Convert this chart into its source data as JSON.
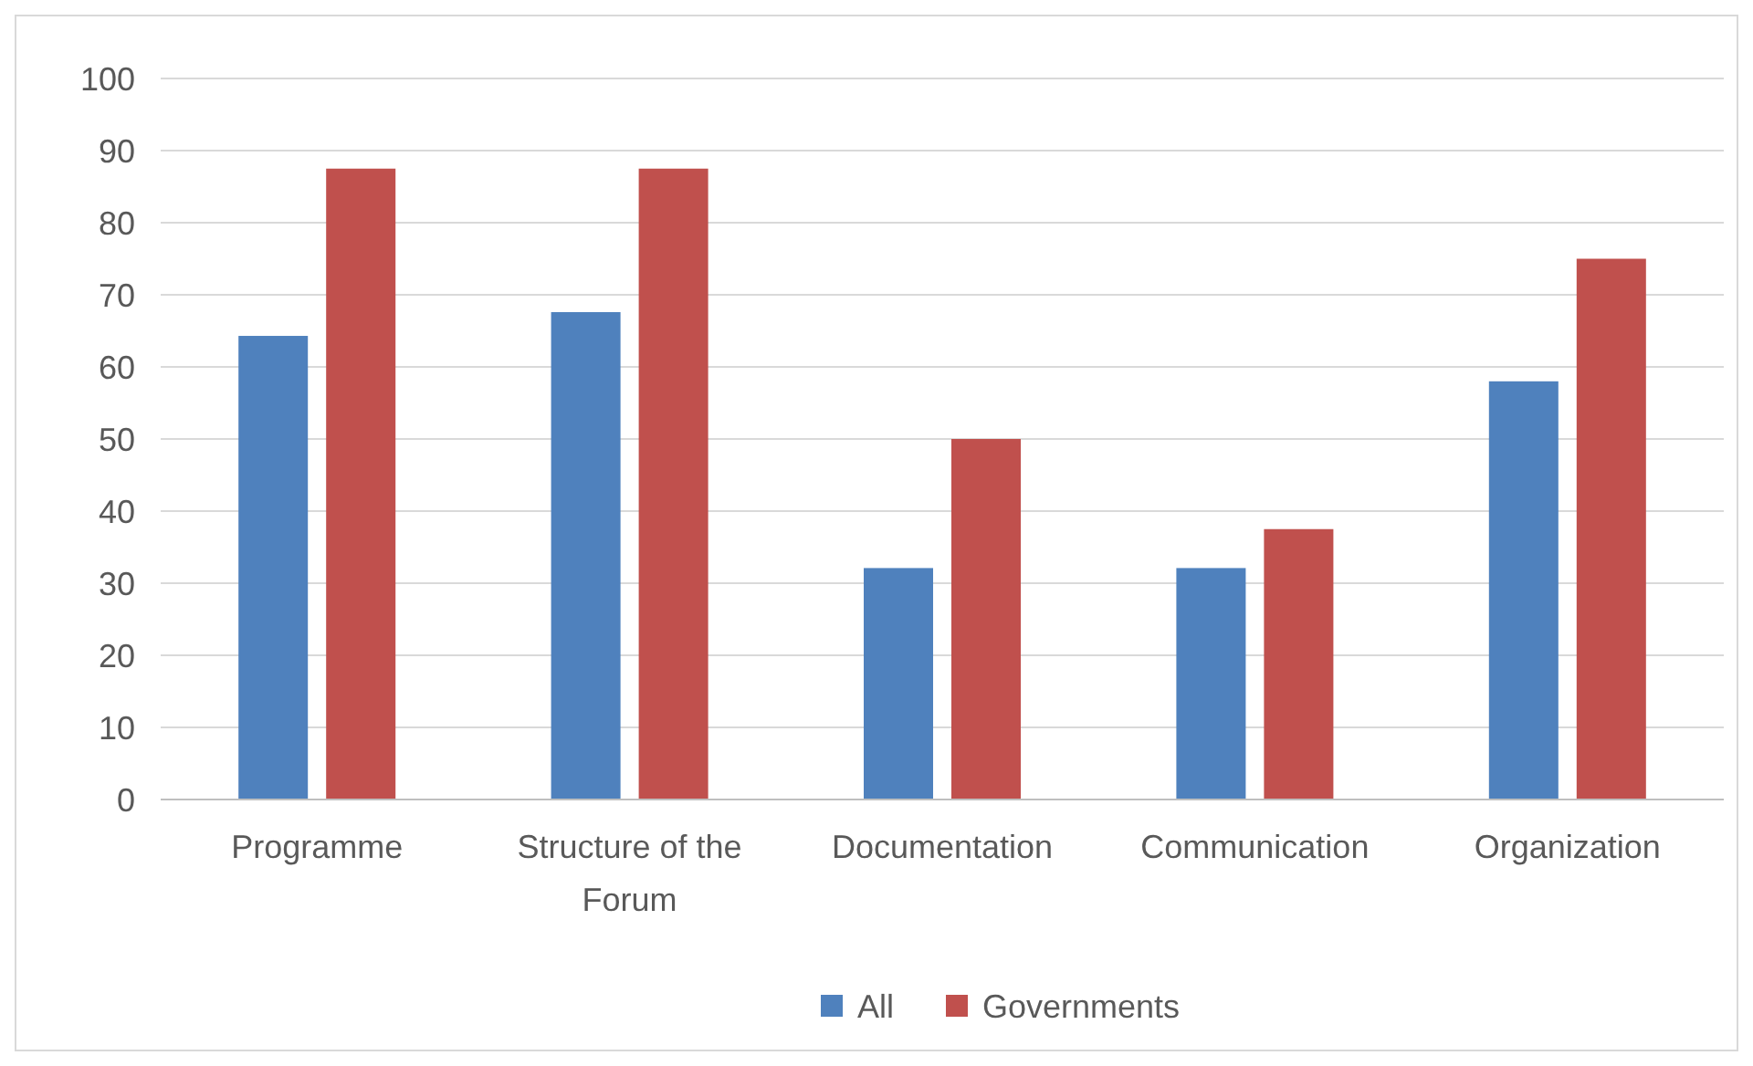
{
  "chart_data": {
    "type": "bar",
    "categories": [
      "Programme",
      "Structure of the Forum",
      "Documentation",
      "Communication",
      "Organization"
    ],
    "series": [
      {
        "name": "All",
        "color": "#4f81bd",
        "values": [
          64.3,
          67.6,
          32.1,
          32.1,
          58
        ]
      },
      {
        "name": "Governments",
        "color": "#c0504d",
        "values": [
          87.5,
          87.5,
          50,
          37.5,
          75
        ]
      }
    ],
    "ylim": [
      0,
      100
    ],
    "yticks": [
      0,
      10,
      20,
      30,
      40,
      50,
      60,
      70,
      80,
      90,
      100
    ],
    "grid": "y",
    "legend": "bottom"
  }
}
